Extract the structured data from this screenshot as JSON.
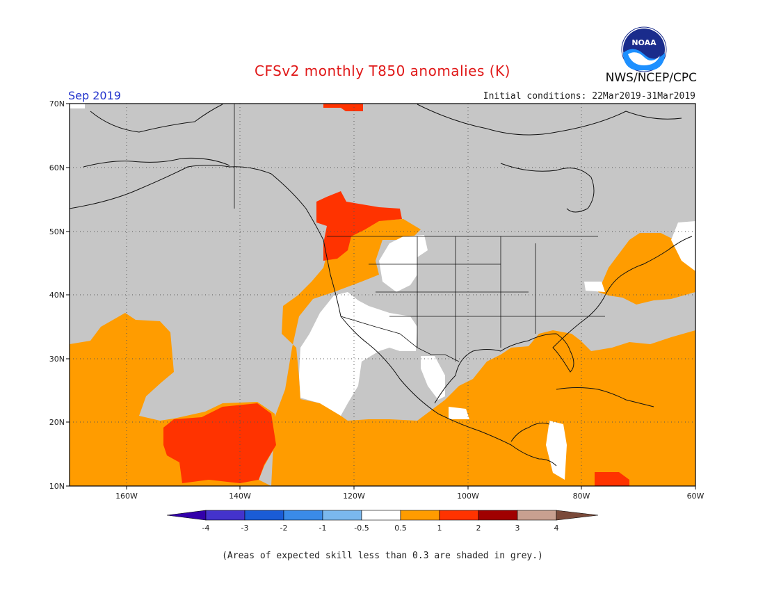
{
  "header": {
    "title": "CFSv2 monthly T850 anomalies (K)",
    "month": "Sep 2019",
    "initial_conditions": "Initial conditions: 22Mar2019-31Mar2019",
    "agency": "NWS/NCEP/CPC",
    "logo_text": "NOAA"
  },
  "map": {
    "lat_labels": [
      "70N",
      "60N",
      "50N",
      "40N",
      "30N",
      "20N",
      "10N"
    ],
    "lon_labels": [
      "160W",
      "140W",
      "120W",
      "100W",
      "80W",
      "60W"
    ],
    "extent": {
      "lon_min": -170,
      "lon_max": -60,
      "lat_min": 10,
      "lat_max": 70
    },
    "background_color": "#c6c6c6",
    "anomaly_colors": {
      "0.5-1": "#ff9c00",
      "1-2": "#ff3300",
      "-0.5-0.5": "#ffffff"
    }
  },
  "colorbar": {
    "ticks": [
      "-4",
      "-3",
      "-2",
      "-1",
      "-0.5",
      "0.5",
      "1",
      "2",
      "3",
      "4"
    ],
    "colors": [
      "#3300aa",
      "#4433cc",
      "#1a5cd6",
      "#3a8be8",
      "#7ab8ee",
      "#ffffff",
      "#ff9c00",
      "#ff3300",
      "#a00000",
      "#c8a090",
      "#7a4a3a"
    ]
  },
  "footer": {
    "skill_note": "(Areas of expected skill less than 0.3 are shaded in grey.)"
  }
}
